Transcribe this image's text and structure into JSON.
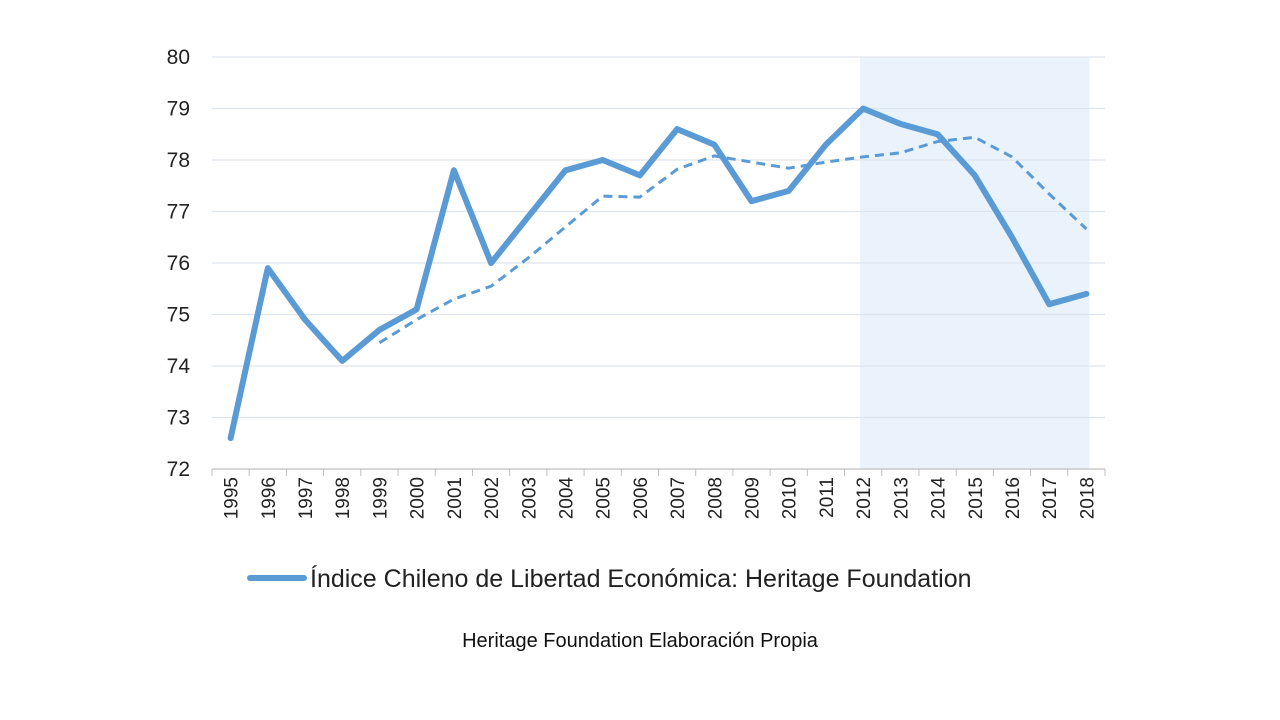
{
  "chart_data": {
    "type": "line",
    "x": [
      "1995",
      "1996",
      "1997",
      "1998",
      "1999",
      "2000",
      "2001",
      "2002",
      "2003",
      "2004",
      "2005",
      "2006",
      "2007",
      "2008",
      "2009",
      "2010",
      "2011",
      "2012",
      "2013",
      "2014",
      "2015",
      "2016",
      "2017",
      "2018"
    ],
    "series": [
      {
        "name": "Índice Chileno de Libertad Económica: Heritage Foundation",
        "style": "solid",
        "values": [
          72.6,
          75.9,
          74.9,
          74.1,
          74.7,
          75.1,
          77.8,
          76.0,
          76.9,
          77.8,
          78.0,
          77.7,
          78.6,
          78.3,
          77.2,
          77.4,
          78.3,
          79.0,
          78.7,
          78.5,
          77.7,
          76.5,
          75.2,
          75.4
        ]
      },
      {
        "style": "dashed",
        "values": [
          null,
          null,
          null,
          null,
          74.45,
          74.9,
          75.3,
          75.55,
          76.1,
          76.7,
          77.3,
          77.28,
          77.82,
          78.08,
          77.96,
          77.84,
          77.96,
          78.06,
          78.14,
          78.36,
          78.44,
          78.06,
          77.34,
          76.66
        ]
      }
    ],
    "ylim": [
      72,
      80
    ],
    "yticks": [
      "72",
      "73",
      "74",
      "75",
      "76",
      "77",
      "78",
      "79",
      "80"
    ],
    "highlight_range": [
      "2012",
      "2018"
    ],
    "grid": true,
    "legend_placement": "bottom",
    "source_note": "Heritage Foundation Elaboración Propia",
    "colors": {
      "line": "#5b9bd5",
      "highlight": "#eaf2fb",
      "grid": "#dfe5ee",
      "axis": "#bfbfbf"
    }
  }
}
